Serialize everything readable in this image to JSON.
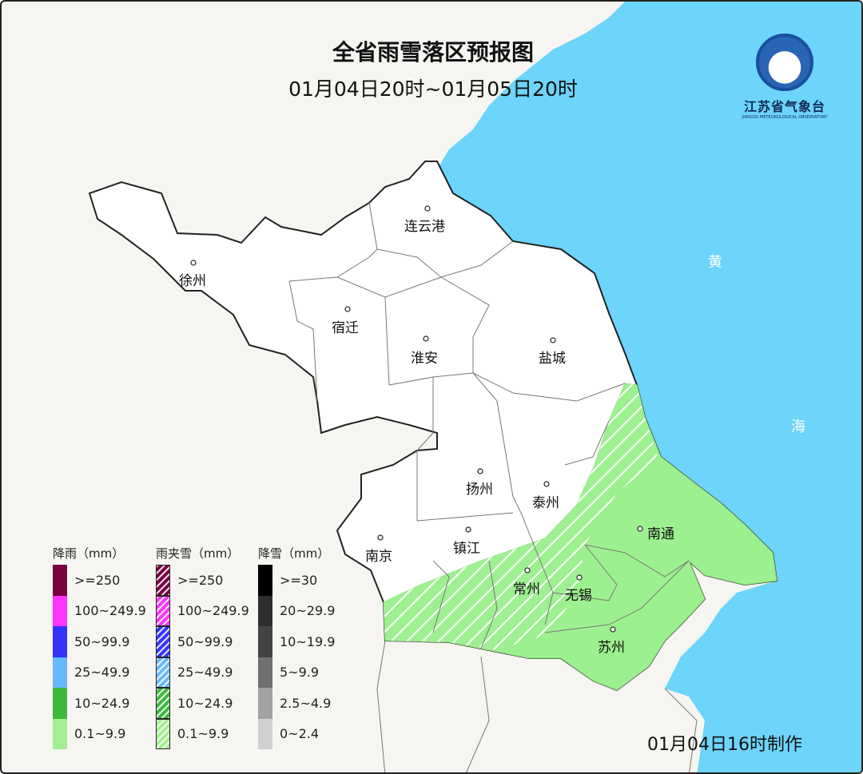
{
  "title": "全省雨雪落区预报图",
  "period": "01月04日20时~01月05日20时",
  "logo": {
    "name": "江苏省气象台",
    "name_en": "JIANGSU METEOROLOGICAL OBSERVATORY"
  },
  "sea_labels": [
    "黄",
    "海"
  ],
  "cities": [
    "连云港",
    "徐州",
    "宿迁",
    "淮安",
    "盐城",
    "扬州",
    "泰州",
    "南京",
    "镇江",
    "常州",
    "无锡",
    "南通",
    "苏州"
  ],
  "colors": {
    "sea": "#6dd4fb",
    "land": "#ffffff",
    "outside": "#f6f5f2",
    "light_rain": "#9df08f"
  },
  "forecast_areas": [
    {
      "type": "雨夹雪",
      "level": "0.1~9.9",
      "region": "south-west of Nantong to Changzhou, Wuxi, south Nanjing",
      "pattern": "hatched"
    },
    {
      "type": "降雨",
      "level": "0.1~9.9",
      "region": "eastern Nantong, Suzhou",
      "pattern": "solid"
    }
  ],
  "legend": {
    "rain": {
      "title": "降雨（mm）",
      "items": [
        {
          "label": ">=250",
          "color": "#7a0040"
        },
        {
          "label": "100~249.9",
          "color": "#ff33ff"
        },
        {
          "label": "50~99.9",
          "color": "#3333ff"
        },
        {
          "label": "25~49.9",
          "color": "#66b8ff"
        },
        {
          "label": "10~24.9",
          "color": "#3cb93c"
        },
        {
          "label": "0.1~9.9",
          "color": "#a1f08f"
        }
      ]
    },
    "sleet": {
      "title": "雨夹雪（mm）",
      "items": [
        {
          "label": ">=250",
          "color": "#7a0040"
        },
        {
          "label": "100~249.9",
          "color": "#ff33ff"
        },
        {
          "label": "50~99.9",
          "color": "#3333ff"
        },
        {
          "label": "25~49.9",
          "color": "#66b8ff"
        },
        {
          "label": "10~24.9",
          "color": "#3cb93c"
        },
        {
          "label": "0.1~9.9",
          "color": "#a1f08f"
        }
      ]
    },
    "snow": {
      "title": "降雪（mm）",
      "items": [
        {
          "label": ">=30",
          "color": "#000000"
        },
        {
          "label": "20~29.9",
          "color": "#2e2e2e"
        },
        {
          "label": "10~19.9",
          "color": "#444444"
        },
        {
          "label": "5~9.9",
          "color": "#707070"
        },
        {
          "label": "2.5~4.9",
          "color": "#a3a3a3"
        },
        {
          "label": "0~2.4",
          "color": "#d0d0d0"
        }
      ]
    }
  },
  "footer": "01月04日16时制作"
}
